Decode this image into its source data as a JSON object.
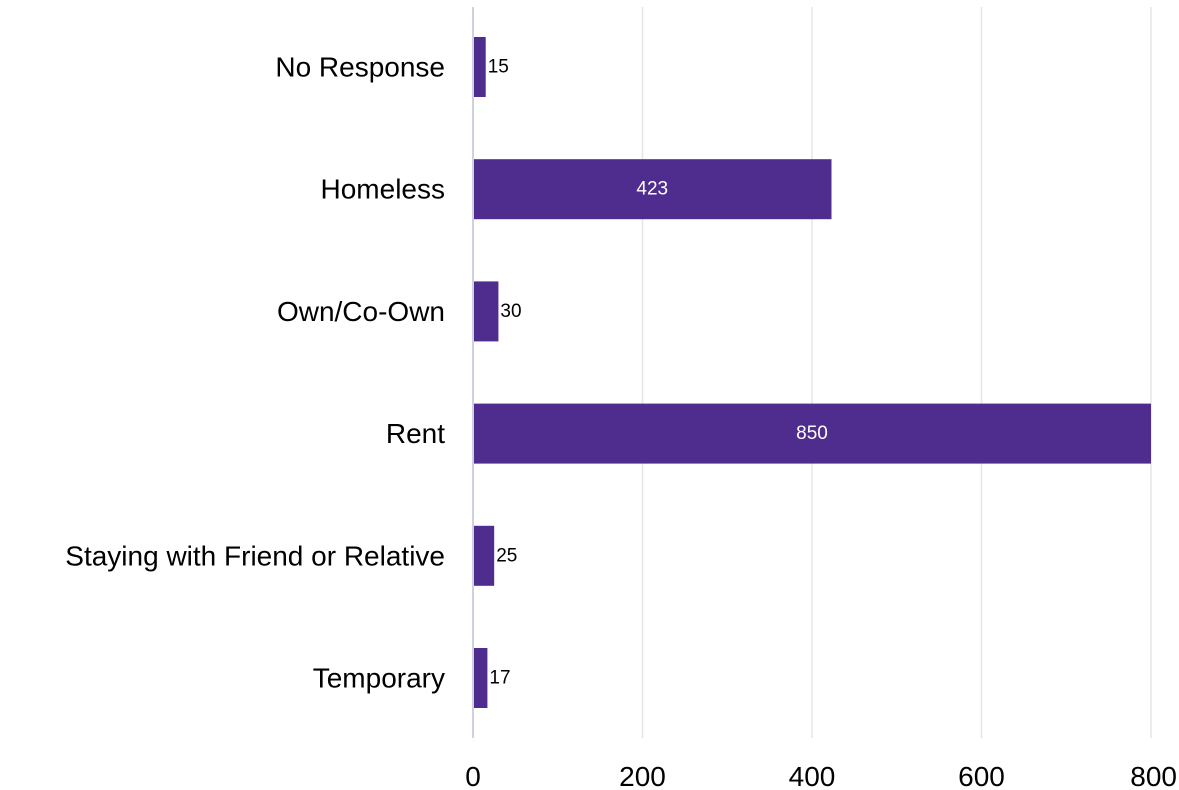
{
  "chart_data": {
    "type": "bar",
    "orientation": "horizontal",
    "categories": [
      "No Response",
      "Homeless",
      "Own/Co-Own",
      "Rent",
      "Staying with Friend or Relative",
      "Temporary"
    ],
    "values": [
      15,
      423,
      30,
      850,
      25,
      17
    ],
    "data_labels": [
      "15",
      "423",
      "30",
      "850",
      "25",
      "17"
    ],
    "xlim": [
      0,
      800
    ],
    "x_ticks": [
      0,
      200,
      400,
      600,
      800
    ],
    "x_tick_labels": [
      "0",
      "200",
      "400",
      "600",
      "800"
    ],
    "title": "",
    "xlabel": "",
    "ylabel": "",
    "grid": "vertical",
    "legend": "none",
    "bar_color": "#4f2d8f"
  }
}
